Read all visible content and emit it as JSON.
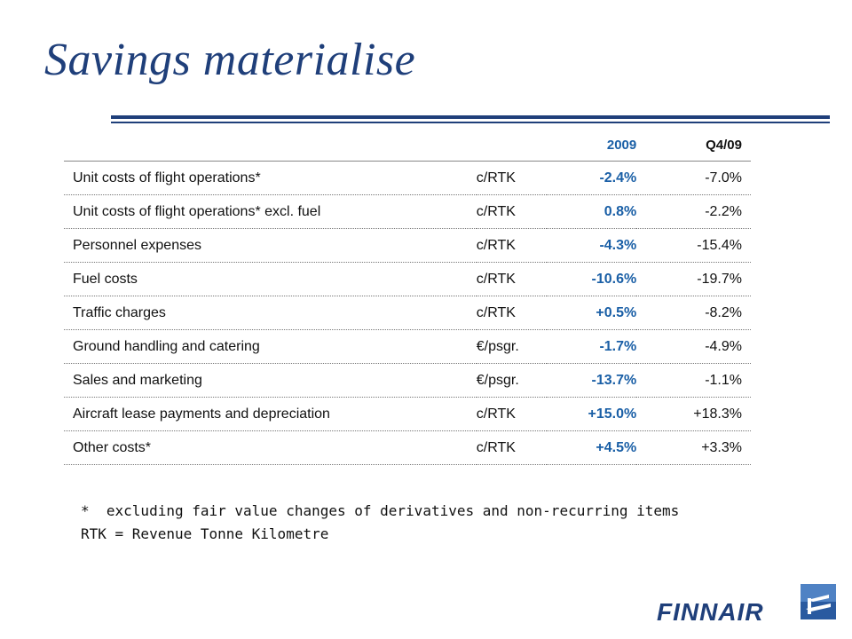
{
  "title": "Savings materialise",
  "table": {
    "headers": [
      "",
      "",
      "2009",
      "Q4/09"
    ],
    "rows": [
      {
        "item": "Unit costs of flight operations*",
        "unit": "c/RTK",
        "y2009": "-2.4%",
        "q409": "-7.0%"
      },
      {
        "item": "Unit costs of flight operations* excl. fuel",
        "unit": "c/RTK",
        "y2009": "0.8%",
        "q409": "-2.2%"
      },
      {
        "item": "Personnel expenses",
        "unit": "c/RTK",
        "y2009": "-4.3%",
        "q409": "-15.4%"
      },
      {
        "item": "Fuel costs",
        "unit": "c/RTK",
        "y2009": "-10.6%",
        "q409": "-19.7%"
      },
      {
        "item": "Traffic charges",
        "unit": "c/RTK",
        "y2009": "+0.5%",
        "q409": "-8.2%"
      },
      {
        "item": "Ground handling and catering",
        "unit": "€/psgr.",
        "y2009": "-1.7%",
        "q409": "-4.9%"
      },
      {
        "item": "Sales and marketing",
        "unit": "€/psgr.",
        "y2009": "-13.7%",
        "q409": "-1.1%"
      },
      {
        "item": "Aircraft lease payments and depreciation",
        "unit": "c/RTK",
        "y2009": "+15.0%",
        "q409": "+18.3%"
      },
      {
        "item": "Other costs*",
        "unit": "c/RTK",
        "y2009": "+4.5%",
        "q409": "+3.3%"
      }
    ]
  },
  "notes": [
    "*  excluding fair value changes of derivatives and non-recurring items",
    "RTK = Revenue Tonne Kilometre"
  ],
  "logo": {
    "wordmark": "FINNAIR",
    "icon": "finnair-f-emblem-icon"
  },
  "colors": {
    "brand_blue": "#1f3f7a",
    "highlight_blue": "#1a5fa6"
  }
}
